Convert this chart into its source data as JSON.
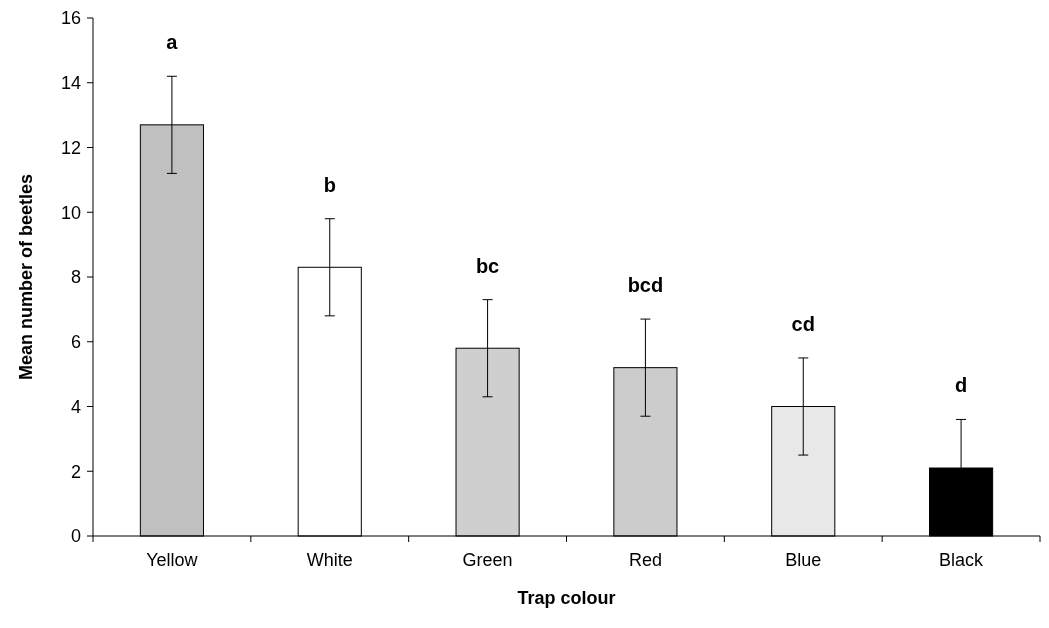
{
  "chart_data": {
    "type": "bar",
    "xlabel": "Trap colour",
    "ylabel": "Mean number of beetles",
    "categories": [
      "Yellow",
      "White",
      "Green",
      "Red",
      "Blue",
      "Black"
    ],
    "values": [
      12.7,
      8.3,
      5.8,
      5.2,
      4.0,
      2.1
    ],
    "colors": [
      "#c0c0c0",
      "#ffffff",
      "#cfcfcf",
      "#cccccc",
      "#e8e8e8",
      "#000000"
    ],
    "errors": [
      1.5,
      1.5,
      1.5,
      1.5,
      1.5,
      1.5
    ],
    "ylim": [
      0,
      16
    ],
    "yticks": [
      0,
      2,
      4,
      6,
      8,
      10,
      12,
      14,
      16
    ],
    "grid": false,
    "annotations": [
      "a",
      "b",
      "bc",
      "bcd",
      "cd",
      "d"
    ]
  }
}
